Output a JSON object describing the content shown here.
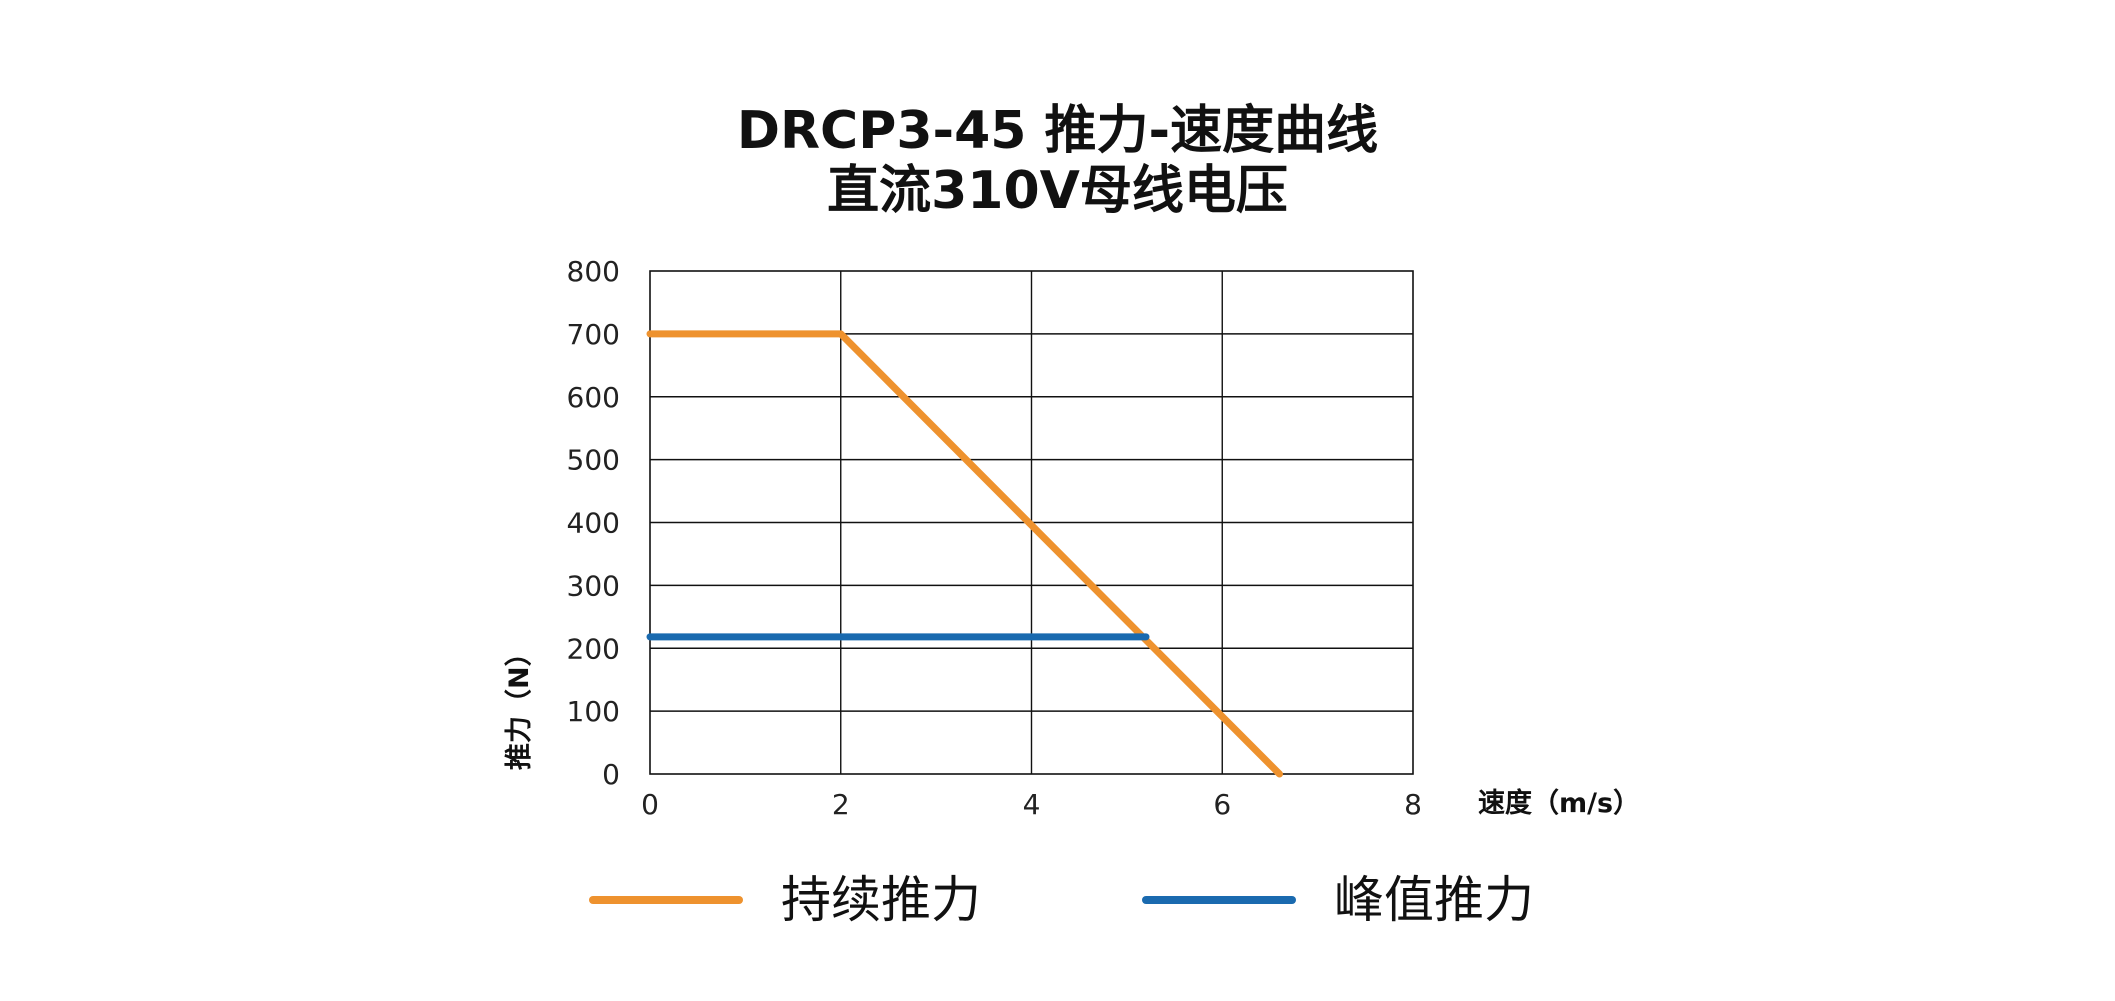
{
  "chart_data": {
    "type": "line",
    "title": "DRCP3-45 推力-速度曲线",
    "subtitle": "直流310V母线电压",
    "xlabel": "速度（m/s）",
    "ylabel": "推力（N）",
    "xlim": [
      0,
      8
    ],
    "ylim": [
      0,
      800
    ],
    "x_ticks": [
      "0",
      "2",
      "4",
      "6",
      "8"
    ],
    "y_ticks": [
      "0",
      "100",
      "200",
      "300",
      "400",
      "500",
      "600",
      "700",
      "800"
    ],
    "grid": true,
    "legend_position": "bottom",
    "series": [
      {
        "name": "持续推力",
        "color": "#EE922E",
        "points": [
          [
            0,
            700
          ],
          [
            2,
            700
          ],
          [
            6.6,
            0
          ]
        ]
      },
      {
        "name": "峰值推力",
        "color": "#1A6AAF",
        "points": [
          [
            0,
            218
          ],
          [
            5.2,
            218
          ]
        ]
      }
    ]
  }
}
